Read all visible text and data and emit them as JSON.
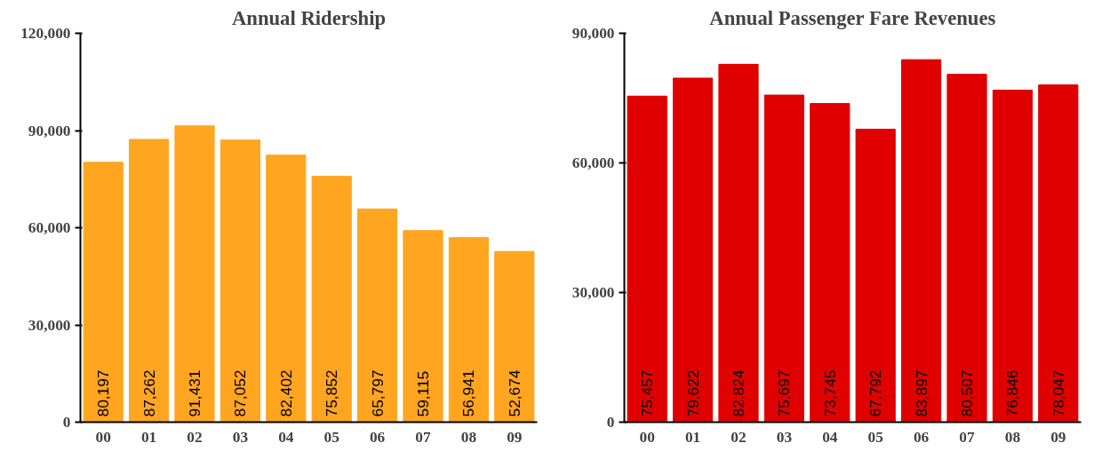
{
  "chart_data": [
    {
      "type": "bar",
      "title": "Annual Ridership",
      "categories": [
        "00",
        "01",
        "02",
        "03",
        "04",
        "05",
        "06",
        "07",
        "08",
        "09"
      ],
      "values": [
        80197,
        87262,
        91431,
        87052,
        82402,
        75852,
        65797,
        59115,
        56941,
        52674
      ],
      "color": "#ffa520",
      "value_labels": [
        "80,197",
        "87,262",
        "91,431",
        "87,052",
        "82,402",
        "75,852",
        "65,797",
        "59,115",
        "56,941",
        "52,674"
      ],
      "ylim": [
        0,
        120000
      ],
      "yticks": [
        {
          "value": 0,
          "label": "0"
        },
        {
          "value": 30000,
          "label": "30,000"
        },
        {
          "value": 60000,
          "label": "60,000"
        },
        {
          "value": 90000,
          "label": "90,000"
        },
        {
          "value": 120000,
          "label": "120,000"
        }
      ],
      "grid": false
    },
    {
      "type": "bar",
      "title": "Annual Passenger Fare Revenues",
      "categories": [
        "00",
        "01",
        "02",
        "03",
        "04",
        "05",
        "06",
        "07",
        "08",
        "09"
      ],
      "values": [
        75457,
        79622,
        82824,
        75697,
        73745,
        67792,
        83897,
        80507,
        76846,
        78047
      ],
      "color": "#e00000",
      "value_labels": [
        "75,457",
        "79,622",
        "82,824",
        "75,697",
        "73,745",
        "67,792",
        "83,897",
        "80,507",
        "76,846",
        "78,047"
      ],
      "ylim": [
        0,
        90000
      ],
      "yticks": [
        {
          "value": 0,
          "label": "0"
        },
        {
          "value": 30000,
          "label": "30,000"
        },
        {
          "value": 60000,
          "label": "60,000"
        },
        {
          "value": 90000,
          "label": "90,000"
        }
      ],
      "grid": false
    }
  ]
}
